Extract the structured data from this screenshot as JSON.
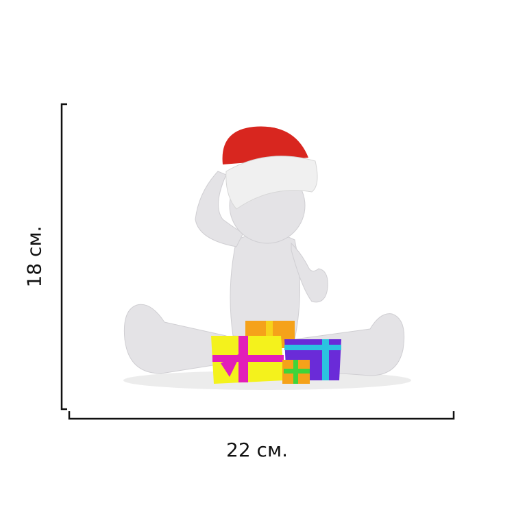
{
  "dimensions": {
    "width_label": "22 см.",
    "height_label": "18 см."
  },
  "illustration": {
    "subject": "3d-figure-with-santa-hat-and-gifts",
    "colors": {
      "figure": "#e4e3e6",
      "hat": "#d8261f",
      "hat_trim": "#f0f0f0",
      "gift_yellow": "#f4f21c",
      "gift_orange": "#f5a21a",
      "gift_purple": "#6a2bd8",
      "ribbon_pink": "#e21fb8",
      "ribbon_cyan": "#2bc3e0",
      "gift_green": "#3fd43a"
    }
  }
}
